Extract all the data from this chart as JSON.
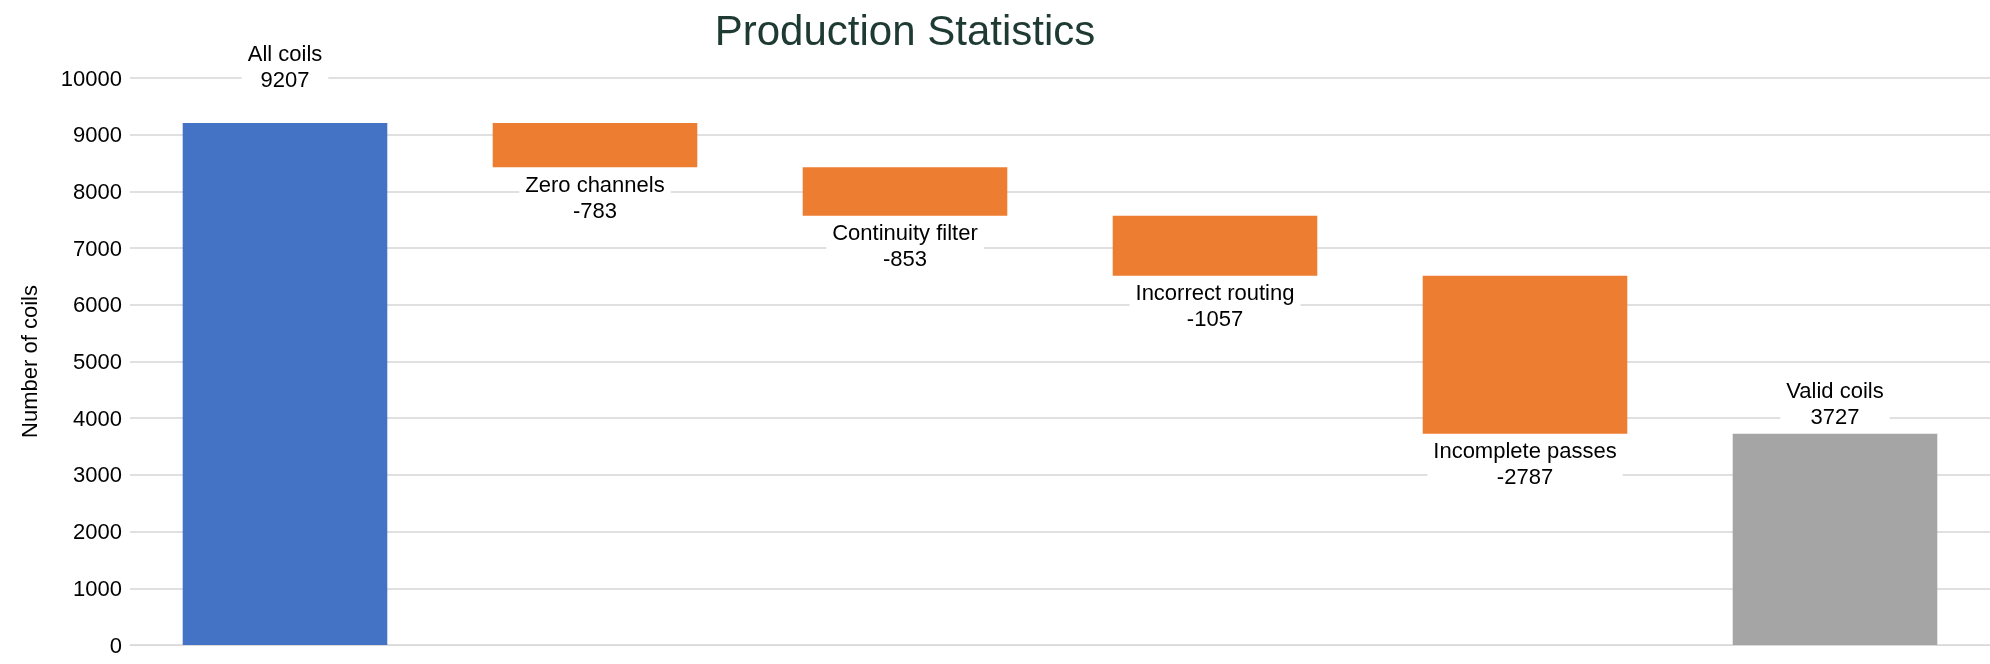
{
  "chart_data": {
    "type": "bar",
    "title": "Production Statistics",
    "ylabel": "Number of coils",
    "categories": [
      "All coils",
      "Zero channels",
      "Continuity filter",
      "Incorrect routing",
      "Incomplete passes",
      "Valid coils"
    ],
    "values": [
      9207,
      -783,
      -853,
      -1057,
      -2787,
      3727
    ],
    "base": [
      0,
      9207,
      8424,
      7571,
      6514,
      0
    ],
    "colors": [
      "#4472c4",
      "#ed7d31",
      "#ed7d31",
      "#ed7d31",
      "#ed7d31",
      "#a5a5a5"
    ],
    "ylim": [
      0,
      10000
    ],
    "yticks": [
      0,
      1000,
      2000,
      3000,
      4000,
      5000,
      6000,
      7000,
      8000,
      9000,
      10000
    ],
    "grid": "y",
    "tick_labels": "y",
    "data_labels": true
  }
}
